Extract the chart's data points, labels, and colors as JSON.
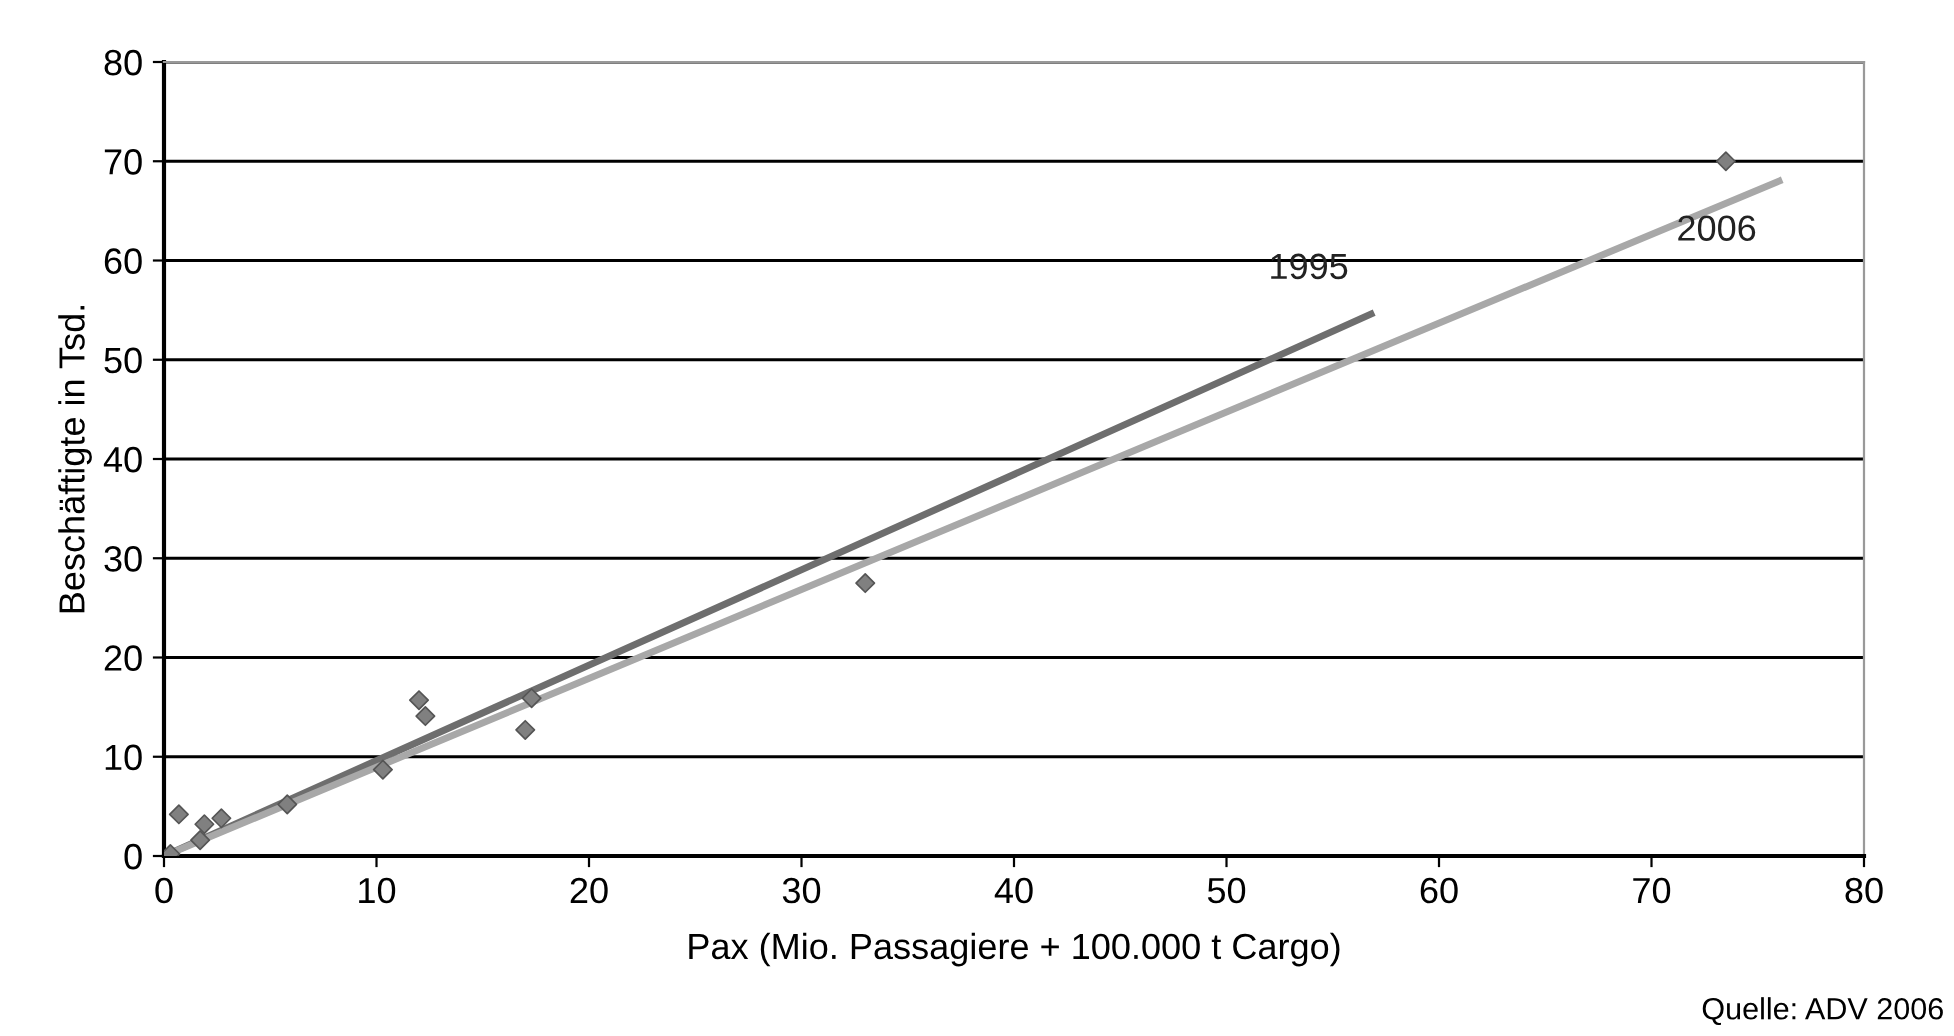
{
  "chart_data": {
    "type": "scatter",
    "xlabel": "Pax (Mio. Passagiere + 100.000 t Cargo)",
    "ylabel": "Beschäftigte in Tsd.",
    "xlim": [
      0,
      80
    ],
    "ylim": [
      0,
      80
    ],
    "xticks": [
      0,
      10,
      20,
      30,
      40,
      50,
      60,
      70,
      80
    ],
    "yticks": [
      0,
      10,
      20,
      30,
      40,
      50,
      60,
      70,
      80
    ],
    "grid": "y",
    "legend": false,
    "annotations": [
      "Quelle: ADV 2006"
    ],
    "series": [
      {
        "color": "#808080",
        "marker": "diamond",
        "x": [
          0.3,
          0.7,
          1.7,
          1.9,
          2.7,
          5.8,
          10.3,
          12.0,
          12.3,
          17.0,
          17.3,
          33.0,
          73.5
        ],
        "values": [
          0.2,
          4.2,
          1.6,
          3.2,
          3.8,
          5.2,
          8.7,
          15.7,
          14.1,
          12.7,
          15.9,
          27.5,
          70.0
        ]
      },
      {
        "type": "line",
        "name": "1995",
        "color": "#6e6e6e",
        "x": [
          0,
          56.8
        ],
        "values": [
          0,
          54.6
        ]
      },
      {
        "type": "line",
        "name": "2006",
        "color": "#a8a8a8",
        "x": [
          0,
          76
        ],
        "values": [
          0,
          68
        ]
      }
    ]
  }
}
